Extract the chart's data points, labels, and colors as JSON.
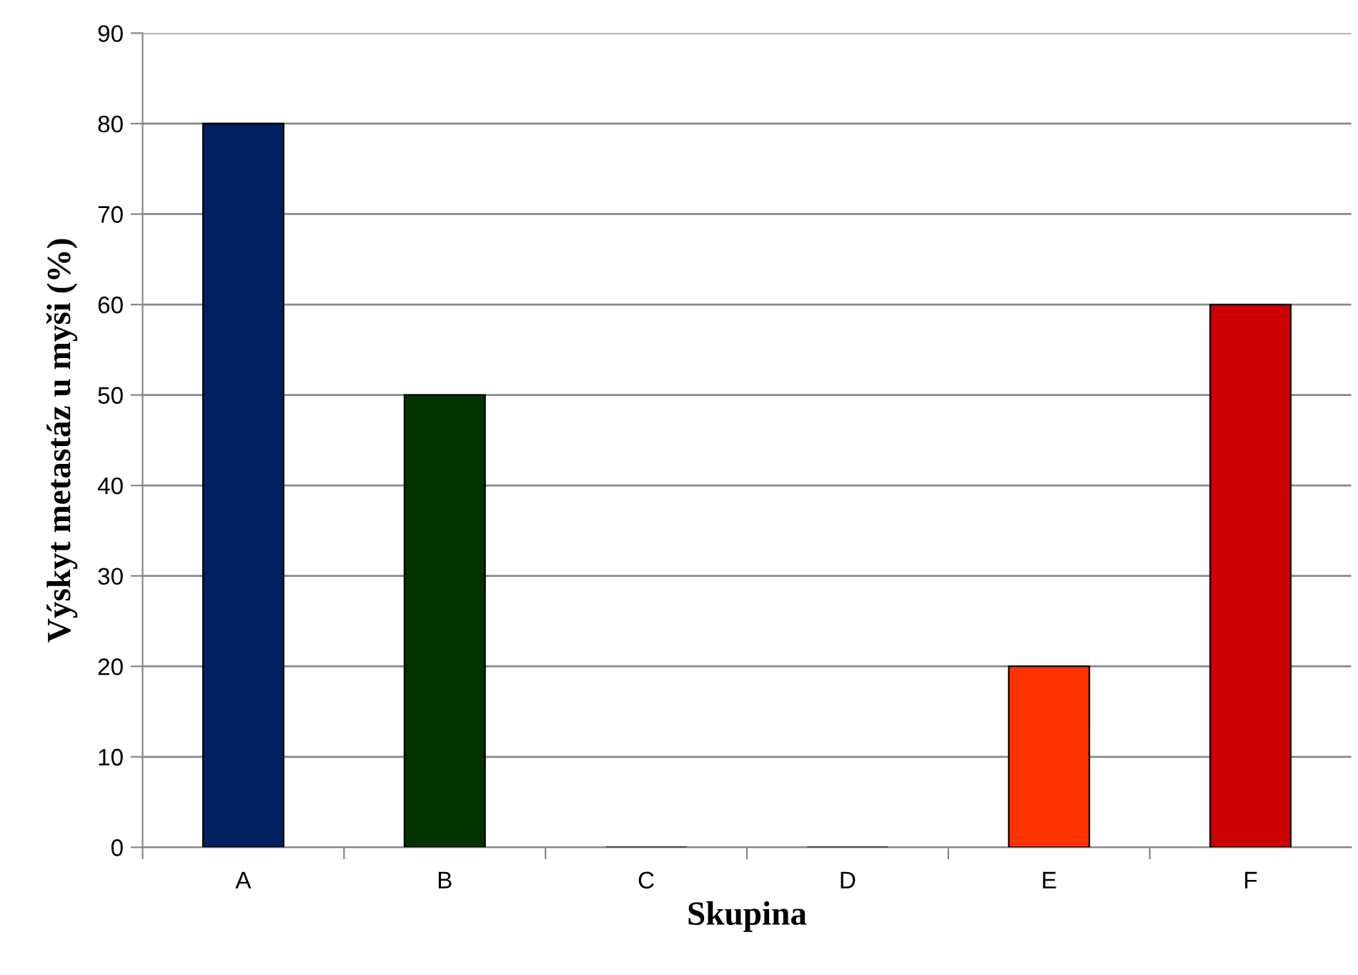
{
  "chart_data": {
    "type": "bar",
    "xlabel": "Skupina",
    "ylabel": "Výskyt metastáz u myši (%)",
    "categories": [
      "A",
      "B",
      "C",
      "D",
      "E",
      "F"
    ],
    "values": [
      80,
      50,
      0,
      0,
      20,
      60
    ],
    "colors": [
      "#002060",
      "#003300",
      "#000000",
      "#000000",
      "#ff3300",
      "#cc0000"
    ],
    "ylim": [
      0,
      90
    ],
    "yticks": [
      0,
      10,
      20,
      30,
      40,
      50,
      60,
      70,
      80,
      90
    ],
    "grid": "y",
    "legend": false
  }
}
